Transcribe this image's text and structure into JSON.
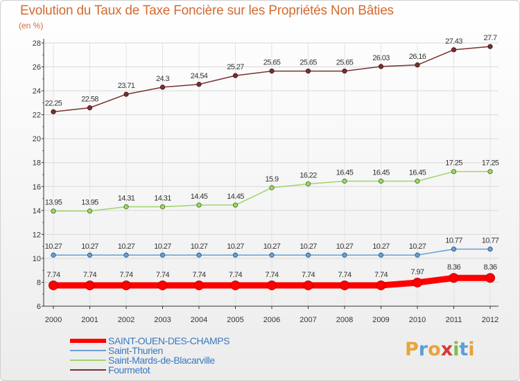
{
  "title": "Evolution du Taux de Taxe Foncière sur les Propriétés Non Bâties",
  "unit": "(en %)",
  "chart_data": {
    "type": "line",
    "title": "Evolution du Taux de Taxe Foncière sur les Propriétés Non Bâties",
    "ylabel": "(en %)",
    "xlabel": "",
    "x": [
      "2000",
      "2001",
      "2002",
      "2003",
      "2004",
      "2005",
      "2006",
      "2007",
      "2008",
      "2009",
      "2010",
      "2011",
      "2012"
    ],
    "ylim": [
      6,
      28
    ],
    "yticks": [
      "6",
      "8",
      "10",
      "12",
      "14",
      "16",
      "18",
      "20",
      "22",
      "24",
      "26",
      "28"
    ],
    "grid": true,
    "legend": "bottom-left",
    "series": [
      {
        "name": "SAINT-OUEN-DES-CHAMPS",
        "color": "#ff0000",
        "values": [
          7.74,
          7.74,
          7.74,
          7.74,
          7.74,
          7.74,
          7.74,
          7.74,
          7.74,
          7.74,
          7.97,
          8.36,
          8.36
        ],
        "labels": [
          "7.74",
          "7.74",
          "7.74",
          "7.74",
          "7.74",
          "7.74",
          "7.74",
          "7.74",
          "7.74",
          "7.74",
          "7.97",
          "8.36",
          "8.36"
        ]
      },
      {
        "name": "Saint-Thurien",
        "color": "#6a9fd4",
        "values": [
          10.27,
          10.27,
          10.27,
          10.27,
          10.27,
          10.27,
          10.27,
          10.27,
          10.27,
          10.27,
          10.27,
          10.77,
          10.77
        ],
        "labels": [
          "10.27",
          "10.27",
          "10.27",
          "10.27",
          "10.27",
          "10.27",
          "10.27",
          "10.27",
          "10.27",
          "10.27",
          "10.27",
          "10.77",
          "10.77"
        ]
      },
      {
        "name": "Saint-Mards-de-Blacarville",
        "color": "#9fd46a",
        "values": [
          13.95,
          13.95,
          14.31,
          14.31,
          14.45,
          14.45,
          15.9,
          16.22,
          16.45,
          16.45,
          16.45,
          17.25,
          17.25
        ],
        "labels": [
          "13.95",
          "13.95",
          "14.31",
          "14.31",
          "14.45",
          "14.45",
          "15.9",
          "16.22",
          "16.45",
          "16.45",
          "16.45",
          "17.25",
          "17.25"
        ]
      },
      {
        "name": "Fourmetot",
        "color": "#7a3030",
        "values": [
          22.25,
          22.58,
          23.71,
          24.3,
          24.54,
          25.27,
          25.65,
          25.65,
          25.65,
          26.03,
          26.16,
          27.43,
          27.7
        ],
        "labels": [
          "22.25",
          "22.58",
          "23.71",
          "24.3",
          "24.54",
          "25.27",
          "25.65",
          "25.65",
          "25.65",
          "26.03",
          "26.16",
          "27.43",
          "27.7"
        ]
      }
    ]
  },
  "legend_items": [
    {
      "label": "SAINT-OUEN-DES-CHAMPS",
      "color": "#ff0000"
    },
    {
      "label": "Saint-Thurien",
      "color": "#6a9fd4"
    },
    {
      "label": "Saint-Mards-de-Blacarville",
      "color": "#9fd46a"
    },
    {
      "label": "Fourmetot",
      "color": "#7a3030"
    }
  ],
  "logo": {
    "letters": [
      "P",
      "r",
      "o",
      "x",
      "i",
      "t",
      "i"
    ],
    "colors": [
      "#e8a33a",
      "#5aa0d8",
      "#e8a33a",
      "#d43a3a",
      "#7cbf4a",
      "#5aa0d8",
      "#e8a33a"
    ]
  }
}
